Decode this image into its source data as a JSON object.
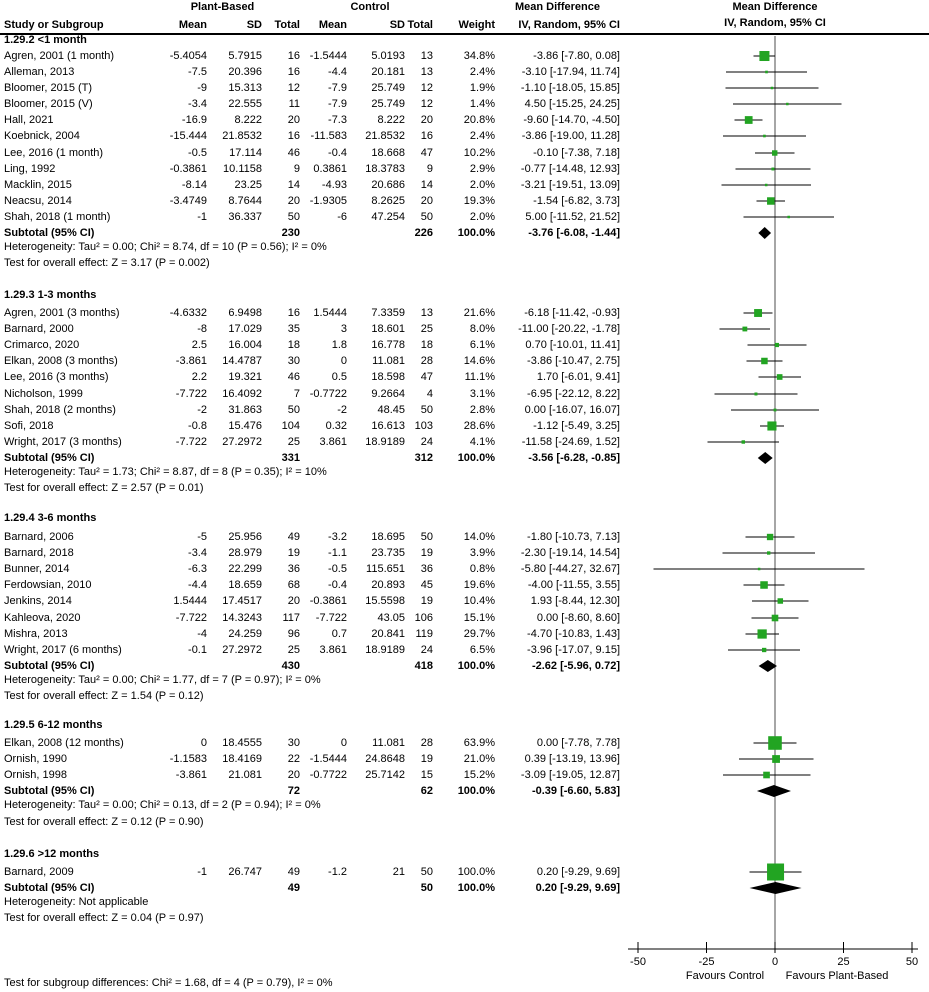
{
  "chart_data": {
    "type": "forest",
    "effect_measure": "Mean Difference",
    "model": "IV, Random, 95% CI",
    "group_headers": {
      "plant": "Plant-Based",
      "control": "Control",
      "md": "Mean Difference",
      "md_sub": "IV, Random, 95% CI"
    },
    "columns": {
      "study": "Study or Subgroup",
      "mean": "Mean",
      "sd": "SD",
      "total": "Total",
      "weight": "Weight",
      "ci": "IV, Random, 95% CI"
    },
    "groups": [
      {
        "label": "1.29.2 <1 month",
        "studies": [
          {
            "name": "Agren, 2001 (1 month)",
            "m1": "-5.4054",
            "sd1": "5.7915",
            "n1": "16",
            "m2": "-1.5444",
            "sd2": "5.0193",
            "n2": "13",
            "w": "34.8%",
            "ci": "-3.86 [-7.80, 0.08]",
            "md": -3.86,
            "lo": -7.8,
            "hi": 0.08
          },
          {
            "name": "Alleman, 2013",
            "m1": "-7.5",
            "sd1": "20.396",
            "n1": "16",
            "m2": "-4.4",
            "sd2": "20.181",
            "n2": "13",
            "w": "2.4%",
            "ci": "-3.10 [-17.94, 11.74]",
            "md": -3.1,
            "lo": -17.94,
            "hi": 11.74
          },
          {
            "name": "Bloomer, 2015 (T)",
            "m1": "-9",
            "sd1": "15.313",
            "n1": "12",
            "m2": "-7.9",
            "sd2": "25.749",
            "n2": "12",
            "w": "1.9%",
            "ci": "-1.10 [-18.05, 15.85]",
            "md": -1.1,
            "lo": -18.05,
            "hi": 15.85
          },
          {
            "name": "Bloomer, 2015 (V)",
            "m1": "-3.4",
            "sd1": "22.555",
            "n1": "11",
            "m2": "-7.9",
            "sd2": "25.749",
            "n2": "12",
            "w": "1.4%",
            "ci": "4.50 [-15.25, 24.25]",
            "md": 4.5,
            "lo": -15.25,
            "hi": 24.25
          },
          {
            "name": "Hall, 2021",
            "m1": "-16.9",
            "sd1": "8.222",
            "n1": "20",
            "m2": "-7.3",
            "sd2": "8.222",
            "n2": "20",
            "w": "20.8%",
            "ci": "-9.60 [-14.70, -4.50]",
            "md": -9.6,
            "lo": -14.7,
            "hi": -4.5
          },
          {
            "name": "Koebnick, 2004",
            "m1": "-15.444",
            "sd1": "21.8532",
            "n1": "16",
            "m2": "-11.583",
            "sd2": "21.8532",
            "n2": "16",
            "w": "2.4%",
            "ci": "-3.86 [-19.00, 11.28]",
            "md": -3.86,
            "lo": -19.0,
            "hi": 11.28
          },
          {
            "name": "Lee, 2016 (1 month)",
            "m1": "-0.5",
            "sd1": "17.114",
            "n1": "46",
            "m2": "-0.4",
            "sd2": "18.668",
            "n2": "47",
            "w": "10.2%",
            "ci": "-0.10 [-7.38, 7.18]",
            "md": -0.1,
            "lo": -7.38,
            "hi": 7.18
          },
          {
            "name": "Ling, 1992",
            "m1": "-0.3861",
            "sd1": "10.1158",
            "n1": "9",
            "m2": "0.3861",
            "sd2": "18.3783",
            "n2": "9",
            "w": "2.9%",
            "ci": "-0.77 [-14.48, 12.93]",
            "md": -0.77,
            "lo": -14.48,
            "hi": 12.93
          },
          {
            "name": "Macklin, 2015",
            "m1": "-8.14",
            "sd1": "23.25",
            "n1": "14",
            "m2": "-4.93",
            "sd2": "20.686",
            "n2": "14",
            "w": "2.0%",
            "ci": "-3.21 [-19.51, 13.09]",
            "md": -3.21,
            "lo": -19.51,
            "hi": 13.09
          },
          {
            "name": "Neacsu, 2014",
            "m1": "-3.4749",
            "sd1": "8.7644",
            "n1": "20",
            "m2": "-1.9305",
            "sd2": "8.2625",
            "n2": "20",
            "w": "19.3%",
            "ci": "-1.54 [-6.82, 3.73]",
            "md": -1.54,
            "lo": -6.82,
            "hi": 3.73
          },
          {
            "name": "Shah, 2018 (1 month)",
            "m1": "-1",
            "sd1": "36.337",
            "n1": "50",
            "m2": "-6",
            "sd2": "47.254",
            "n2": "50",
            "w": "2.0%",
            "ci": "5.00 [-11.52, 21.52]",
            "md": 5.0,
            "lo": -11.52,
            "hi": 21.52
          }
        ],
        "subtotal": {
          "label": "Subtotal (95% CI)",
          "n1": "230",
          "n2": "226",
          "w": "100.0%",
          "ci": "-3.76 [-6.08, -1.44]",
          "md": -3.76,
          "lo": -6.08,
          "hi": -1.44
        },
        "heterogeneity": "Heterogeneity: Tau² = 0.00; Chi² = 8.74, df = 10 (P = 0.56); I² = 0%",
        "test": "Test for overall effect: Z = 3.17 (P = 0.002)"
      },
      {
        "label": "1.29.3 1-3 months",
        "studies": [
          {
            "name": "Agren, 2001 (3 months)",
            "m1": "-4.6332",
            "sd1": "6.9498",
            "n1": "16",
            "m2": "1.5444",
            "sd2": "7.3359",
            "n2": "13",
            "w": "21.6%",
            "ci": "-6.18 [-11.42, -0.93]",
            "md": -6.18,
            "lo": -11.42,
            "hi": -0.93
          },
          {
            "name": "Barnard, 2000",
            "m1": "-8",
            "sd1": "17.029",
            "n1": "35",
            "m2": "3",
            "sd2": "18.601",
            "n2": "25",
            "w": "8.0%",
            "ci": "-11.00 [-20.22, -1.78]",
            "md": -11.0,
            "lo": -20.22,
            "hi": -1.78
          },
          {
            "name": "Crimarco, 2020",
            "m1": "2.5",
            "sd1": "16.004",
            "n1": "18",
            "m2": "1.8",
            "sd2": "16.778",
            "n2": "18",
            "w": "6.1%",
            "ci": "0.70 [-10.01, 11.41]",
            "md": 0.7,
            "lo": -10.01,
            "hi": 11.41
          },
          {
            "name": "Elkan, 2008 (3 months)",
            "m1": "-3.861",
            "sd1": "14.4787",
            "n1": "30",
            "m2": "0",
            "sd2": "11.081",
            "n2": "28",
            "w": "14.6%",
            "ci": "-3.86 [-10.47, 2.75]",
            "md": -3.86,
            "lo": -10.47,
            "hi": 2.75
          },
          {
            "name": "Lee, 2016 (3 months)",
            "m1": "2.2",
            "sd1": "19.321",
            "n1": "46",
            "m2": "0.5",
            "sd2": "18.598",
            "n2": "47",
            "w": "11.1%",
            "ci": "1.70 [-6.01, 9.41]",
            "md": 1.7,
            "lo": -6.01,
            "hi": 9.41
          },
          {
            "name": "Nicholson, 1999",
            "m1": "-7.722",
            "sd1": "16.4092",
            "n1": "7",
            "m2": "-0.7722",
            "sd2": "9.2664",
            "n2": "4",
            "w": "3.1%",
            "ci": "-6.95 [-22.12, 8.22]",
            "md": -6.95,
            "lo": -22.12,
            "hi": 8.22
          },
          {
            "name": "Shah, 2018 (2 months)",
            "m1": "-2",
            "sd1": "31.863",
            "n1": "50",
            "m2": "-2",
            "sd2": "48.45",
            "n2": "50",
            "w": "2.8%",
            "ci": "0.00 [-16.07, 16.07]",
            "md": 0.0,
            "lo": -16.07,
            "hi": 16.07
          },
          {
            "name": "Sofi, 2018",
            "m1": "-0.8",
            "sd1": "15.476",
            "n1": "104",
            "m2": "0.32",
            "sd2": "16.613",
            "n2": "103",
            "w": "28.6%",
            "ci": "-1.12 [-5.49, 3.25]",
            "md": -1.12,
            "lo": -5.49,
            "hi": 3.25
          },
          {
            "name": "Wright, 2017 (3 months)",
            "m1": "-7.722",
            "sd1": "27.2972",
            "n1": "25",
            "m2": "3.861",
            "sd2": "18.9189",
            "n2": "24",
            "w": "4.1%",
            "ci": "-11.58 [-24.69, 1.52]",
            "md": -11.58,
            "lo": -24.69,
            "hi": 1.52
          }
        ],
        "subtotal": {
          "label": "Subtotal (95% CI)",
          "n1": "331",
          "n2": "312",
          "w": "100.0%",
          "ci": "-3.56 [-6.28, -0.85]",
          "md": -3.56,
          "lo": -6.28,
          "hi": -0.85
        },
        "heterogeneity": "Heterogeneity: Tau² = 1.73; Chi² = 8.87, df = 8 (P = 0.35); I² = 10%",
        "test": "Test for overall effect: Z = 2.57 (P = 0.01)"
      },
      {
        "label": "1.29.4 3-6 months",
        "studies": [
          {
            "name": "Barnard, 2006",
            "m1": "-5",
            "sd1": "25.956",
            "n1": "49",
            "m2": "-3.2",
            "sd2": "18.695",
            "n2": "50",
            "w": "14.0%",
            "ci": "-1.80 [-10.73, 7.13]",
            "md": -1.8,
            "lo": -10.73,
            "hi": 7.13
          },
          {
            "name": "Barnard, 2018",
            "m1": "-3.4",
            "sd1": "28.979",
            "n1": "19",
            "m2": "-1.1",
            "sd2": "23.735",
            "n2": "19",
            "w": "3.9%",
            "ci": "-2.30 [-19.14, 14.54]",
            "md": -2.3,
            "lo": -19.14,
            "hi": 14.54
          },
          {
            "name": "Bunner, 2014",
            "m1": "-6.3",
            "sd1": "22.299",
            "n1": "36",
            "m2": "-0.5",
            "sd2": "115.651",
            "n2": "36",
            "w": "0.8%",
            "ci": "-5.80 [-44.27, 32.67]",
            "md": -5.8,
            "lo": -44.27,
            "hi": 32.67
          },
          {
            "name": "Ferdowsian, 2010",
            "m1": "-4.4",
            "sd1": "18.659",
            "n1": "68",
            "m2": "-0.4",
            "sd2": "20.893",
            "n2": "45",
            "w": "19.6%",
            "ci": "-4.00 [-11.55, 3.55]",
            "md": -4.0,
            "lo": -11.55,
            "hi": 3.55
          },
          {
            "name": "Jenkins, 2014",
            "m1": "1.5444",
            "sd1": "17.4517",
            "n1": "20",
            "m2": "-0.3861",
            "sd2": "15.5598",
            "n2": "19",
            "w": "10.4%",
            "ci": "1.93 [-8.44, 12.30]",
            "md": 1.93,
            "lo": -8.44,
            "hi": 12.3
          },
          {
            "name": "Kahleova, 2020",
            "m1": "-7.722",
            "sd1": "14.3243",
            "n1": "117",
            "m2": "-7.722",
            "sd2": "43.05",
            "n2": "106",
            "w": "15.1%",
            "ci": "0.00 [-8.60, 8.60]",
            "md": 0.0,
            "lo": -8.6,
            "hi": 8.6
          },
          {
            "name": "Mishra, 2013",
            "m1": "-4",
            "sd1": "24.259",
            "n1": "96",
            "m2": "0.7",
            "sd2": "20.841",
            "n2": "119",
            "w": "29.7%",
            "ci": "-4.70 [-10.83, 1.43]",
            "md": -4.7,
            "lo": -10.83,
            "hi": 1.43
          },
          {
            "name": "Wright, 2017 (6 months)",
            "m1": "-0.1",
            "sd1": "27.2972",
            "n1": "25",
            "m2": "3.861",
            "sd2": "18.9189",
            "n2": "24",
            "w": "6.5%",
            "ci": "-3.96 [-17.07, 9.15]",
            "md": -3.96,
            "lo": -17.07,
            "hi": 9.15
          }
        ],
        "subtotal": {
          "label": "Subtotal (95% CI)",
          "n1": "430",
          "n2": "418",
          "w": "100.0%",
          "ci": "-2.62 [-5.96, 0.72]",
          "md": -2.62,
          "lo": -5.96,
          "hi": 0.72
        },
        "heterogeneity": "Heterogeneity: Tau² = 0.00; Chi² = 1.77, df = 7 (P = 0.97); I² = 0%",
        "test": "Test for overall effect: Z = 1.54 (P = 0.12)"
      },
      {
        "label": "1.29.5 6-12 months",
        "studies": [
          {
            "name": "Elkan, 2008 (12 months)",
            "m1": "0",
            "sd1": "18.4555",
            "n1": "30",
            "m2": "0",
            "sd2": "11.081",
            "n2": "28",
            "w": "63.9%",
            "ci": "0.00 [-7.78, 7.78]",
            "md": 0.0,
            "lo": -7.78,
            "hi": 7.78
          },
          {
            "name": "Ornish, 1990",
            "m1": "-1.1583",
            "sd1": "18.4169",
            "n1": "22",
            "m2": "-1.5444",
            "sd2": "24.8648",
            "n2": "19",
            "w": "21.0%",
            "ci": "0.39 [-13.19, 13.96]",
            "md": 0.39,
            "lo": -13.19,
            "hi": 13.96
          },
          {
            "name": "Ornish, 1998",
            "m1": "-3.861",
            "sd1": "21.081",
            "n1": "20",
            "m2": "-0.7722",
            "sd2": "25.7142",
            "n2": "15",
            "w": "15.2%",
            "ci": "-3.09 [-19.05, 12.87]",
            "md": -3.09,
            "lo": -19.05,
            "hi": 12.87
          }
        ],
        "subtotal": {
          "label": "Subtotal (95% CI)",
          "n1": "72",
          "n2": "62",
          "w": "100.0%",
          "ci": "-0.39 [-6.60, 5.83]",
          "md": -0.39,
          "lo": -6.6,
          "hi": 5.83
        },
        "heterogeneity": "Heterogeneity: Tau² = 0.00; Chi² = 0.13, df = 2 (P = 0.94); I² = 0%",
        "test": "Test for overall effect: Z = 0.12 (P = 0.90)"
      },
      {
        "label": "1.29.6 >12 months",
        "studies": [
          {
            "name": "Barnard, 2009",
            "m1": "-1",
            "sd1": "26.747",
            "n1": "49",
            "m2": "-1.2",
            "sd2": "21",
            "n2": "50",
            "w": "100.0%",
            "ci": "0.20 [-9.29, 9.69]",
            "md": 0.2,
            "lo": -9.29,
            "hi": 9.69
          }
        ],
        "subtotal": {
          "label": "Subtotal (95% CI)",
          "n1": "49",
          "n2": "50",
          "w": "100.0%",
          "ci": "0.20 [-9.29, 9.69]",
          "md": 0.2,
          "lo": -9.29,
          "hi": 9.69
        },
        "heterogeneity": "Heterogeneity: Not applicable",
        "test": "Test for overall effect: Z = 0.04 (P = 0.97)"
      }
    ],
    "axis": {
      "min": -50,
      "max": 50,
      "ticks": [
        -50,
        -25,
        0,
        25,
        50
      ],
      "favours_left": "Favours Control",
      "favours_right": "Favours Plant-Based"
    },
    "footer": "Test for subgroup differences: Chi² = 1.68, df = 4 (P = 0.79), I² = 0%",
    "colors": {
      "square": "#22a422",
      "diamond": "#000000",
      "ci_line": "#000000",
      "zero_line": "#4d4d4d"
    }
  }
}
